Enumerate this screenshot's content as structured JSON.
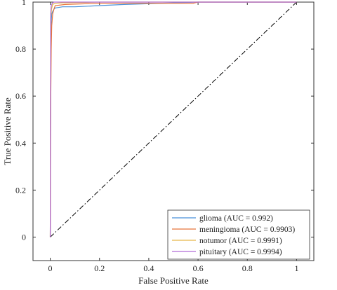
{
  "chart_data": {
    "type": "line",
    "xlabel": "False Positive Rate",
    "ylabel": "True Positive Rate",
    "xlim": [
      -0.07,
      1.07
    ],
    "ylim": [
      -0.1,
      1.0
    ],
    "x_ticks": [
      0,
      0.2,
      0.4,
      0.6,
      0.8,
      1
    ],
    "y_ticks": [
      0,
      0.2,
      0.4,
      0.6,
      0.8,
      1
    ],
    "x_tick_labels": [
      "0",
      "0.2",
      "0.4",
      "0.6",
      "0.8",
      "1"
    ],
    "y_tick_labels": [
      "0",
      "0.2",
      "0.4",
      "0.6",
      "0.8",
      "1"
    ],
    "legend_position": "bottom-right",
    "diagonal_reference": {
      "x": [
        0,
        1
      ],
      "y": [
        0,
        1
      ],
      "style": "dash-dot",
      "color": "#000000"
    },
    "series": [
      {
        "name": "glioma (AUC = 0.992)",
        "color": "#4a90d9",
        "x": [
          0,
          0.002,
          0.004,
          0.006,
          0.01,
          0.015,
          0.02,
          0.05,
          0.1,
          0.2,
          0.3,
          0.6,
          1.0
        ],
        "y": [
          0,
          0.85,
          0.92,
          0.95,
          0.96,
          0.97,
          0.975,
          0.98,
          0.98,
          0.985,
          0.99,
          1.0,
          1.0
        ]
      },
      {
        "name": "meningioma (AUC = 0.9903)",
        "color": "#e8743b",
        "x": [
          0,
          0.002,
          0.004,
          0.006,
          0.01,
          0.015,
          0.02,
          0.06,
          0.2,
          0.58,
          0.6,
          1.0
        ],
        "y": [
          0,
          0.57,
          0.8,
          0.9,
          0.95,
          0.97,
          0.985,
          0.99,
          0.995,
          0.995,
          1.0,
          1.0
        ]
      },
      {
        "name": "notumor (AUC = 0.9991)",
        "color": "#e6b84a",
        "x": [
          0,
          0.002,
          0.005,
          0.01,
          0.02,
          0.05,
          0.2,
          1.0
        ],
        "y": [
          0,
          0.93,
          0.97,
          0.99,
          0.995,
          0.997,
          1.0,
          1.0
        ]
      },
      {
        "name": "pituitary (AUC = 0.9994)",
        "color": "#b06ad6",
        "x": [
          0,
          0.002,
          0.004,
          0.008,
          0.015,
          1.0
        ],
        "y": [
          0,
          0.95,
          0.985,
          0.995,
          1.0,
          1.0
        ]
      }
    ]
  }
}
